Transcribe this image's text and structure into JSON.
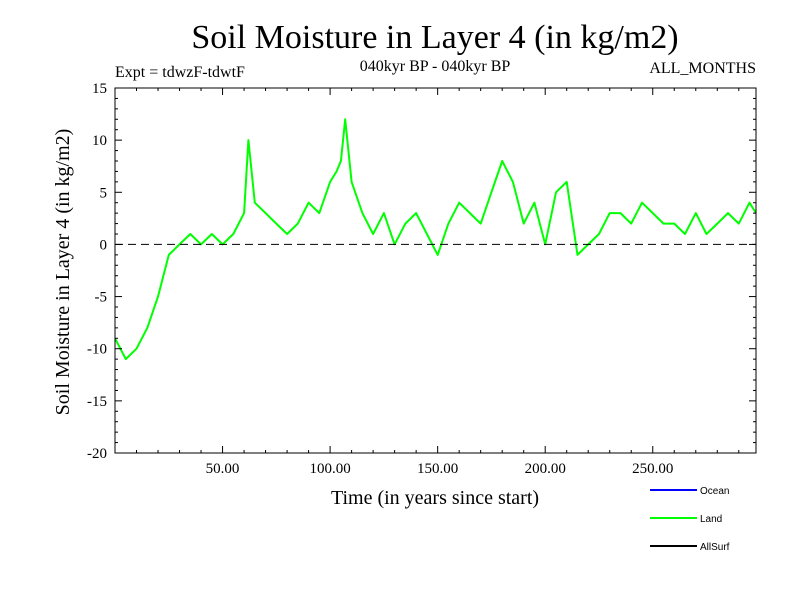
{
  "chart_data": {
    "type": "line",
    "title": "Soil Moisture in Layer 4 (in kg/m2)",
    "subtitle_left": "Expt = tdwzF-tdwtF",
    "subtitle_center": "040kyr BP - 040kyr BP",
    "subtitle_right": "ALL_MONTHS",
    "xlabel": "Time (in years since start)",
    "ylabel": "Soil Moisture in Layer 4 (in kg/m2)",
    "xlim": [
      0,
      298
    ],
    "ylim": [
      -20,
      15
    ],
    "x_ticks": [
      50,
      100,
      150,
      200,
      250
    ],
    "x_tick_labels": [
      "50.00",
      "100.00",
      "150.00",
      "200.00",
      "250.00"
    ],
    "y_ticks": [
      -20,
      -15,
      -10,
      -5,
      0,
      5,
      10,
      15
    ],
    "y_tick_labels": [
      "-20",
      "-15",
      "-10",
      "-5",
      "0",
      "5",
      "10",
      "15"
    ],
    "reference_line": {
      "y": 0,
      "style": "dashed"
    },
    "legend_position": "bottom-right",
    "legend": [
      {
        "name": "Ocean",
        "color": "#0000ff"
      },
      {
        "name": "Land",
        "color": "#00ff00"
      },
      {
        "name": "AllSurf",
        "color": "#000000"
      }
    ],
    "series": [
      {
        "name": "Land",
        "color": "#00ff00",
        "x": [
          0,
          5,
          10,
          15,
          20,
          25,
          30,
          35,
          40,
          45,
          50,
          55,
          60,
          62,
          65,
          70,
          75,
          80,
          85,
          90,
          95,
          100,
          103,
          105,
          107,
          110,
          115,
          120,
          125,
          130,
          135,
          140,
          145,
          150,
          155,
          160,
          165,
          170,
          175,
          180,
          185,
          190,
          195,
          200,
          205,
          210,
          215,
          220,
          225,
          230,
          235,
          240,
          245,
          250,
          255,
          260,
          265,
          270,
          275,
          280,
          285,
          290,
          295,
          298
        ],
        "values": [
          -9,
          -11,
          -10,
          -8,
          -5,
          -1,
          0,
          1,
          0,
          1,
          0,
          1,
          3,
          10,
          4,
          3,
          2,
          1,
          2,
          4,
          3,
          6,
          7,
          8,
          12,
          6,
          3,
          1,
          3,
          0,
          2,
          3,
          1,
          -1,
          2,
          4,
          3,
          2,
          5,
          8,
          6,
          2,
          4,
          0,
          5,
          6,
          -1,
          0,
          1,
          3,
          3,
          2,
          4,
          3,
          2,
          2,
          1,
          3,
          1,
          2,
          3,
          2,
          4,
          3
        ]
      }
    ]
  }
}
